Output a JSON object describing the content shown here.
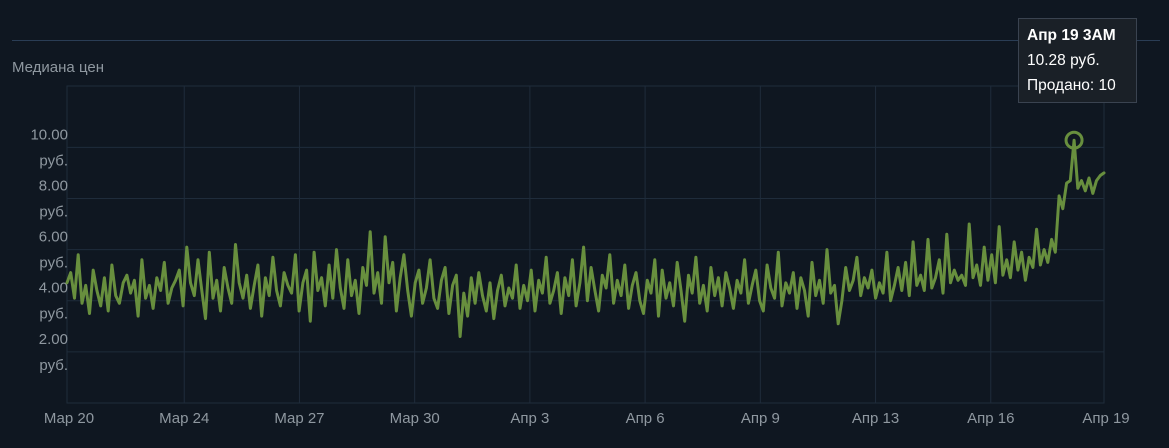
{
  "chart_data": {
    "type": "line",
    "ylabel": "Медиана цен",
    "ylim": [
      0,
      12.4
    ],
    "yticks": [
      {
        "value": 2,
        "line1": "2.00",
        "line2": "руб."
      },
      {
        "value": 4,
        "line1": "4.00",
        "line2": "руб."
      },
      {
        "value": 6,
        "line1": "6.00",
        "line2": "руб."
      },
      {
        "value": 8,
        "line1": "8.00",
        "line2": "руб."
      },
      {
        "value": 10,
        "line1": "10.00",
        "line2": "руб."
      }
    ],
    "xticks": [
      "Мар 20",
      "Мар 24",
      "Мар 27",
      "Мар 30",
      "Апр 3",
      "Апр 6",
      "Апр 9",
      "Апр 13",
      "Апр 16",
      "Апр 19"
    ],
    "series": [
      {
        "color": "#688f3e",
        "values": [
          4.7,
          5.1,
          4.1,
          5.8,
          3.9,
          4.6,
          3.5,
          5.2,
          4.4,
          3.8,
          4.9,
          3.6,
          5.4,
          4.2,
          3.9,
          4.7,
          5.0,
          4.3,
          4.8,
          3.4,
          5.6,
          4.1,
          4.6,
          3.7,
          4.9,
          4.4,
          5.5,
          3.9,
          4.5,
          4.8,
          5.2,
          3.8,
          6.1,
          4.7,
          4.2,
          5.6,
          4.4,
          3.3,
          5.9,
          4.1,
          4.8,
          3.6,
          5.3,
          4.5,
          3.9,
          6.2,
          4.7,
          4.1,
          5.0,
          3.7,
          4.6,
          5.4,
          3.4,
          4.9,
          4.2,
          5.7,
          4.4,
          3.8,
          5.1,
          4.6,
          4.3,
          5.8,
          3.6,
          4.7,
          5.2,
          3.2,
          5.9,
          4.4,
          4.9,
          3.8,
          5.4,
          4.1,
          6.0,
          4.5,
          3.7,
          5.6,
          4.2,
          4.8,
          3.5,
          5.3,
          4.6,
          6.7,
          4.3,
          5.1,
          3.9,
          6.5,
          4.7,
          5.5,
          3.6,
          4.9,
          5.8,
          4.4,
          3.4,
          4.7,
          5.2,
          3.9,
          4.5,
          5.6,
          4.1,
          3.7,
          4.8,
          5.3,
          3.5,
          4.6,
          5.0,
          2.6,
          4.3,
          3.4,
          4.9,
          3.9,
          5.1,
          4.2,
          3.6,
          4.7,
          3.3,
          4.4,
          5.0,
          3.8,
          4.5,
          4.1,
          5.4,
          3.7,
          4.6,
          4.0,
          5.2,
          3.6,
          4.8,
          4.3,
          5.7,
          3.9,
          4.4,
          5.1,
          3.5,
          4.9,
          4.2,
          5.6,
          3.8,
          4.7,
          6.1,
          4.0,
          5.3,
          4.4,
          3.6,
          5.0,
          4.5,
          5.8,
          3.9,
          4.8,
          4.2,
          5.4,
          3.7,
          4.6,
          5.1,
          4.0,
          3.5,
          4.8,
          4.3,
          5.6,
          3.4,
          5.2,
          4.1,
          4.7,
          3.8,
          5.5,
          4.4,
          3.2,
          5.0,
          4.3,
          5.7,
          3.9,
          4.6,
          3.6,
          5.3,
          4.2,
          4.9,
          3.8,
          5.1,
          4.5,
          3.7,
          4.8,
          4.3,
          5.6,
          3.9,
          4.6,
          5.2,
          4.0,
          3.6,
          5.4,
          4.5,
          4.1,
          5.9,
          3.8,
          4.7,
          4.3,
          5.1,
          3.7,
          4.9,
          4.4,
          3.4,
          5.5,
          4.2,
          4.8,
          3.9,
          6.0,
          4.3,
          4.6,
          3.1,
          4.0,
          5.3,
          4.4,
          4.8,
          5.7,
          4.2,
          4.9,
          4.5,
          5.2,
          4.1,
          4.7,
          4.3,
          5.9,
          4.0,
          4.6,
          5.3,
          4.4,
          5.5,
          4.2,
          6.3,
          4.6,
          5.0,
          4.4,
          6.4,
          4.5,
          4.9,
          5.6,
          4.3,
          6.6,
          4.7,
          5.2,
          4.8,
          5.0,
          4.6,
          7.0,
          4.9,
          5.4,
          4.6,
          6.1,
          4.8,
          5.8,
          4.7,
          6.9,
          5.0,
          5.6,
          4.9,
          6.3,
          5.2,
          5.9,
          4.8,
          5.7,
          5.3,
          6.8,
          5.4,
          6.0,
          5.5,
          6.4,
          5.9,
          8.1,
          7.6,
          8.6,
          8.7,
          10.28,
          8.4,
          8.7,
          8.3,
          8.8,
          8.2,
          8.7,
          8.9,
          9.0
        ]
      }
    ],
    "tooltip": {
      "title": "Апр 19 3AM",
      "price": "10.28 руб.",
      "sold": "Продано: 10"
    }
  }
}
